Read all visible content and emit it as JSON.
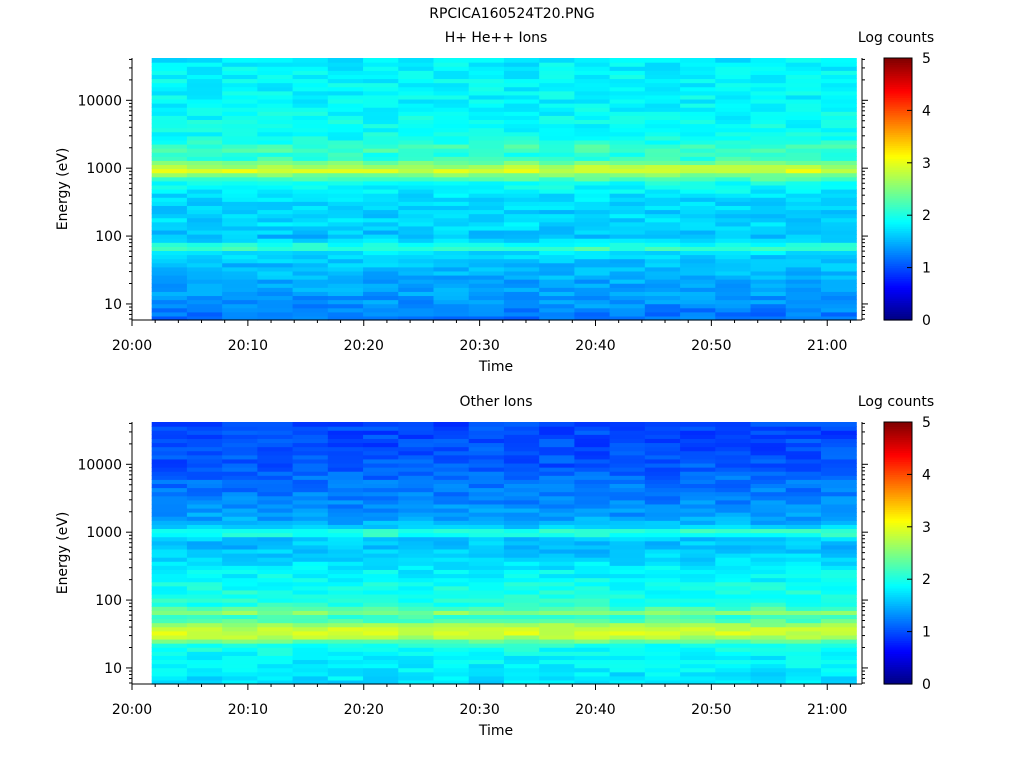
{
  "title": "RPCICA160524T20.PNG",
  "chart_data": [
    {
      "type": "heatmap",
      "title": "H+ He++ Ions",
      "xlabel": "Time",
      "ylabel": "Energy (eV)",
      "y_scale": "log",
      "ylim": [
        5.8,
        42000
      ],
      "xlim": [
        "20:00",
        "21:03"
      ],
      "x_ticks": [
        "20:00",
        "20:10",
        "20:20",
        "20:30",
        "20:40",
        "20:50",
        "21:00"
      ],
      "y_ticks": [
        "10",
        "100",
        "1000",
        "10000"
      ],
      "data_time_range": [
        "20:01.7",
        "21:02.5"
      ],
      "time_bins": 20,
      "colorbar": {
        "label": "Log counts",
        "range": [
          0,
          5
        ],
        "ticks": [
          "0",
          "1",
          "2",
          "3",
          "4",
          "5"
        ]
      },
      "energy_profile_log_counts": [
        {
          "energy": 7,
          "value": 1.2
        },
        {
          "energy": 10,
          "value": 1.35
        },
        {
          "energy": 15,
          "value": 1.4
        },
        {
          "energy": 22,
          "value": 1.45
        },
        {
          "energy": 30,
          "value": 1.55
        },
        {
          "energy": 45,
          "value": 1.6
        },
        {
          "energy": 60,
          "value": 1.75
        },
        {
          "energy": 68,
          "value": 2.3
        },
        {
          "energy": 80,
          "value": 1.8
        },
        {
          "energy": 100,
          "value": 1.55
        },
        {
          "energy": 150,
          "value": 1.7
        },
        {
          "energy": 250,
          "value": 1.65
        },
        {
          "energy": 400,
          "value": 1.75
        },
        {
          "energy": 600,
          "value": 1.95
        },
        {
          "energy": 800,
          "value": 2.5
        },
        {
          "energy": 950,
          "value": 3.0
        },
        {
          "energy": 1150,
          "value": 2.5
        },
        {
          "energy": 1500,
          "value": 2.0
        },
        {
          "energy": 2000,
          "value": 2.25
        },
        {
          "energy": 2600,
          "value": 1.95
        },
        {
          "energy": 5000,
          "value": 1.9
        },
        {
          "energy": 10000,
          "value": 1.85
        },
        {
          "energy": 20000,
          "value": 1.85
        },
        {
          "energy": 40000,
          "value": 1.8
        }
      ]
    },
    {
      "type": "heatmap",
      "title": "Other Ions",
      "xlabel": "Time",
      "ylabel": "Energy (eV)",
      "y_scale": "log",
      "ylim": [
        5.8,
        42000
      ],
      "xlim": [
        "20:00",
        "21:03"
      ],
      "x_ticks": [
        "20:00",
        "20:10",
        "20:20",
        "20:30",
        "20:40",
        "20:50",
        "21:00"
      ],
      "y_ticks": [
        "10",
        "100",
        "1000",
        "10000"
      ],
      "data_time_range": [
        "20:01.7",
        "21:02.5"
      ],
      "time_bins": 20,
      "colorbar": {
        "label": "Log counts",
        "range": [
          0,
          5
        ],
        "ticks": [
          "0",
          "1",
          "2",
          "3",
          "4",
          "5"
        ]
      },
      "energy_profile_log_counts": [
        {
          "energy": 7,
          "value": 1.75
        },
        {
          "energy": 10,
          "value": 1.8
        },
        {
          "energy": 15,
          "value": 1.85
        },
        {
          "energy": 22,
          "value": 2.0
        },
        {
          "energy": 28,
          "value": 2.7
        },
        {
          "energy": 35,
          "value": 2.95
        },
        {
          "energy": 45,
          "value": 2.55
        },
        {
          "energy": 55,
          "value": 2.05
        },
        {
          "energy": 68,
          "value": 2.6
        },
        {
          "energy": 80,
          "value": 2.05
        },
        {
          "energy": 150,
          "value": 1.95
        },
        {
          "energy": 300,
          "value": 1.8
        },
        {
          "energy": 600,
          "value": 1.55
        },
        {
          "energy": 800,
          "value": 1.6
        },
        {
          "energy": 1000,
          "value": 2.25
        },
        {
          "energy": 1250,
          "value": 1.55
        },
        {
          "energy": 2000,
          "value": 1.35
        },
        {
          "energy": 5000,
          "value": 1.2
        },
        {
          "energy": 10000,
          "value": 1.05
        },
        {
          "energy": 20000,
          "value": 1.0
        },
        {
          "energy": 40000,
          "value": 0.95
        }
      ]
    }
  ]
}
